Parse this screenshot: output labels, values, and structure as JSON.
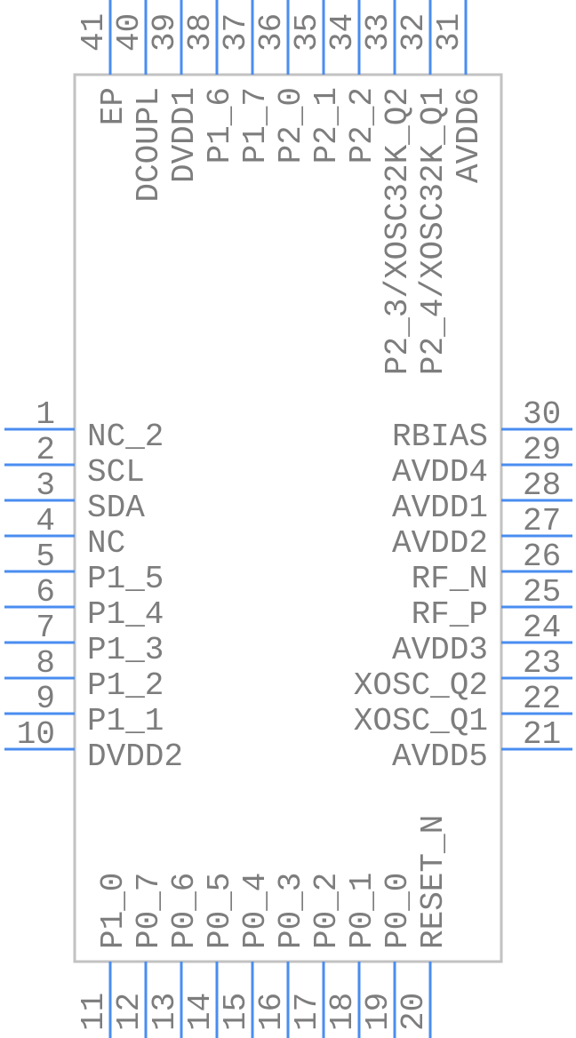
{
  "colors": {
    "pin": "#4a8df0",
    "body": "#c2c2c2",
    "text": "#7d7d7d"
  },
  "pins": {
    "left": [
      {
        "number": "1",
        "name": "NC_2"
      },
      {
        "number": "2",
        "name": "SCL"
      },
      {
        "number": "3",
        "name": "SDA"
      },
      {
        "number": "4",
        "name": "NC"
      },
      {
        "number": "5",
        "name": "P1_5"
      },
      {
        "number": "6",
        "name": "P1_4"
      },
      {
        "number": "7",
        "name": "P1_3"
      },
      {
        "number": "8",
        "name": "P1_2"
      },
      {
        "number": "9",
        "name": "P1_1"
      },
      {
        "number": "10",
        "name": "DVDD2"
      }
    ],
    "bottom": [
      {
        "number": "11",
        "name": "P1_0"
      },
      {
        "number": "12",
        "name": "P0_7"
      },
      {
        "number": "13",
        "name": "P0_6"
      },
      {
        "number": "14",
        "name": "P0_5"
      },
      {
        "number": "15",
        "name": "P0_4"
      },
      {
        "number": "16",
        "name": "P0_3"
      },
      {
        "number": "17",
        "name": "P0_2"
      },
      {
        "number": "18",
        "name": "P0_1"
      },
      {
        "number": "19",
        "name": "P0_0"
      },
      {
        "number": "20",
        "name": "RESET_N"
      }
    ],
    "right": [
      {
        "number": "21",
        "name": "AVDD5"
      },
      {
        "number": "22",
        "name": "XOSC_Q1"
      },
      {
        "number": "23",
        "name": "XOSC_Q2"
      },
      {
        "number": "24",
        "name": "AVDD3"
      },
      {
        "number": "25",
        "name": "RF_P"
      },
      {
        "number": "26",
        "name": "RF_N"
      },
      {
        "number": "27",
        "name": "AVDD2"
      },
      {
        "number": "28",
        "name": "AVDD1"
      },
      {
        "number": "29",
        "name": "AVDD4"
      },
      {
        "number": "30",
        "name": "RBIAS"
      }
    ],
    "top": [
      {
        "number": "31",
        "name": "AVDD6"
      },
      {
        "number": "32",
        "name": "P2_4/XOSC32K_Q1"
      },
      {
        "number": "33",
        "name": "P2_3/XOSC32K_Q2"
      },
      {
        "number": "34",
        "name": "P2_2"
      },
      {
        "number": "35",
        "name": "P2_1"
      },
      {
        "number": "36",
        "name": "P2_0"
      },
      {
        "number": "37",
        "name": "P1_7"
      },
      {
        "number": "38",
        "name": "P1_6"
      },
      {
        "number": "39",
        "name": "DVDD1"
      },
      {
        "number": "40",
        "name": "DCOUPL"
      },
      {
        "number": "41",
        "name": "EP"
      }
    ]
  }
}
